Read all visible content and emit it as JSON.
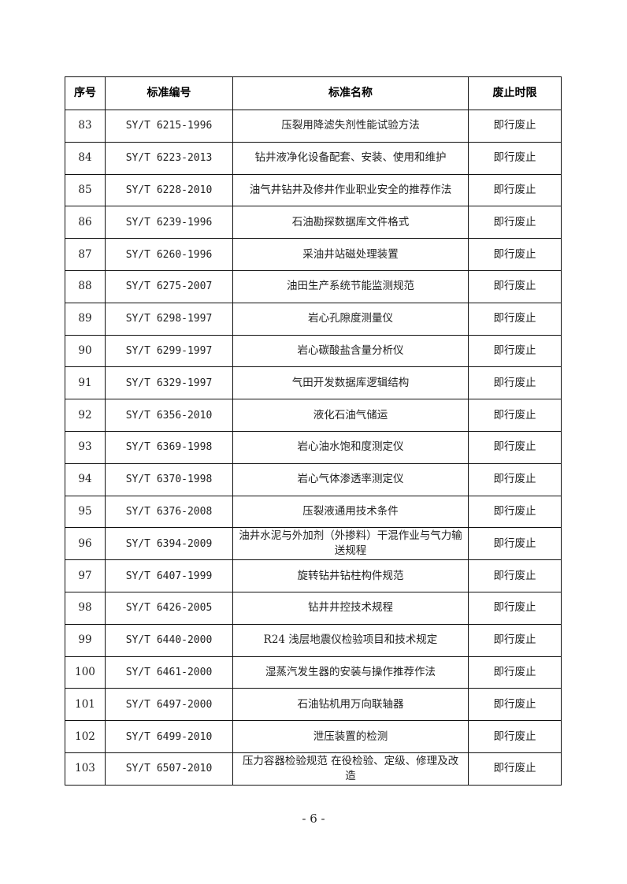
{
  "table": {
    "headers": [
      "序号",
      "标准编号",
      "标准名称",
      "废止时限"
    ],
    "rows": [
      [
        "83",
        "SY/T 6215-1996",
        "压裂用降滤失剂性能试验方法",
        "即行废止"
      ],
      [
        "84",
        "SY/T 6223-2013",
        "钻井液净化设备配套、安装、使用和维护",
        "即行废止"
      ],
      [
        "85",
        "SY/T 6228-2010",
        "油气井钻井及修井作业职业安全的推荐作法",
        "即行废止"
      ],
      [
        "86",
        "SY/T 6239-1996",
        "石油勘探数据库文件格式",
        "即行废止"
      ],
      [
        "87",
        "SY/T 6260-1996",
        "采油井站磁处理装置",
        "即行废止"
      ],
      [
        "88",
        "SY/T 6275-2007",
        "油田生产系统节能监测规范",
        "即行废止"
      ],
      [
        "89",
        "SY/T 6298-1997",
        "岩心孔隙度测量仪",
        "即行废止"
      ],
      [
        "90",
        "SY/T 6299-1997",
        "岩心碳酸盐含量分析仪",
        "即行废止"
      ],
      [
        "91",
        "SY/T 6329-1997",
        "气田开发数据库逻辑结构",
        "即行废止"
      ],
      [
        "92",
        "SY/T 6356-2010",
        "液化石油气储运",
        "即行废止"
      ],
      [
        "93",
        "SY/T 6369-1998",
        "岩心油水饱和度测定仪",
        "即行废止"
      ],
      [
        "94",
        "SY/T 6370-1998",
        "岩心气体渗透率测定仪",
        "即行废止"
      ],
      [
        "95",
        "SY/T 6376-2008",
        "压裂液通用技术条件",
        "即行废止"
      ],
      [
        "96",
        "SY/T 6394-2009",
        "油井水泥与外加剂（外掺料）干混作业与气力输送规程",
        "即行废止"
      ],
      [
        "97",
        "SY/T 6407-1999",
        "旋转钻井钻柱构件规范",
        "即行废止"
      ],
      [
        "98",
        "SY/T 6426-2005",
        "钻井井控技术规程",
        "即行废止"
      ],
      [
        "99",
        "SY/T 6440-2000",
        "R24 浅层地震仪检验项目和技术规定",
        "即行废止"
      ],
      [
        "100",
        "SY/T 6461-2000",
        "湿蒸汽发生器的安装与操作推荐作法",
        "即行废止"
      ],
      [
        "101",
        "SY/T 6497-2000",
        "石油钻机用万向联轴器",
        "即行废止"
      ],
      [
        "102",
        "SY/T 6499-2010",
        "泄压装置的检测",
        "即行废止"
      ],
      [
        "103",
        "SY/T 6507-2010",
        "压力容器检验规范 在役检验、定级、修理及改造",
        "即行废止"
      ]
    ]
  },
  "page_number": "- 6 -"
}
